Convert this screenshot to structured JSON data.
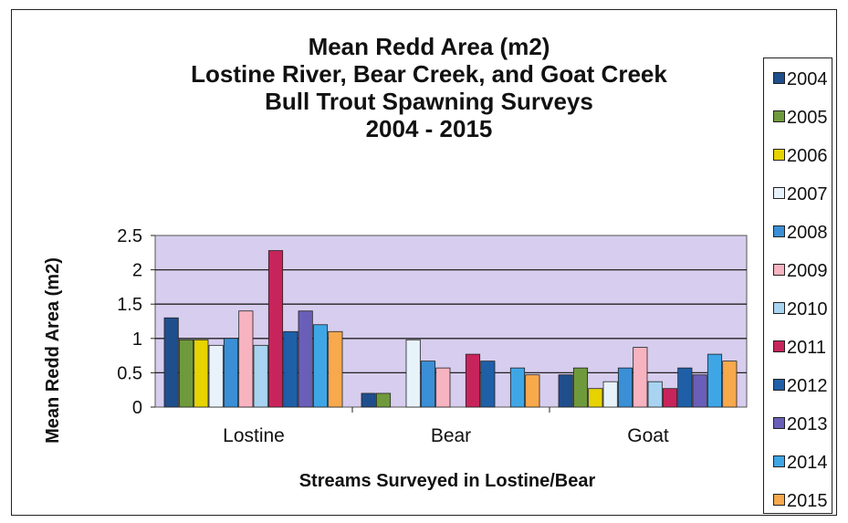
{
  "chart_data": {
    "type": "bar",
    "title_lines": [
      "Mean Redd Area (m2)",
      "Lostine River, Bear Creek, and Goat Creek",
      "Bull Trout Spawning Surveys",
      "2004 - 2015"
    ],
    "xlabel": "Streams Surveyed in Lostine/Bear",
    "ylabel": "Mean Redd Area (m2)",
    "ylim": [
      0,
      2.5
    ],
    "yticks": [
      "0",
      "0.5",
      "1",
      "1.5",
      "2",
      "2.5"
    ],
    "grid": true,
    "legend_position": "right",
    "categories": [
      "Lostine",
      "Bear",
      "Goat"
    ],
    "series": [
      {
        "name": "2004",
        "color": "#1f4e8c",
        "values": [
          1.3,
          0.2,
          0.47
        ]
      },
      {
        "name": "2005",
        "color": "#6f9a3c",
        "values": [
          0.98,
          0.2,
          0.57
        ]
      },
      {
        "name": "2006",
        "color": "#e6d300",
        "values": [
          0.98,
          0,
          0.27
        ]
      },
      {
        "name": "2007",
        "color": "#e8f2fb",
        "values": [
          0.9,
          0.98,
          0.37
        ]
      },
      {
        "name": "2008",
        "color": "#3a8fd6",
        "values": [
          1.0,
          0.67,
          0.57
        ]
      },
      {
        "name": "2009",
        "color": "#f7b3c0",
        "values": [
          1.4,
          0.57,
          0.87
        ]
      },
      {
        "name": "2010",
        "color": "#a8d4f2",
        "values": [
          0.9,
          0,
          0.37
        ]
      },
      {
        "name": "2011",
        "color": "#c8245c",
        "values": [
          2.28,
          0.77,
          0.27
        ]
      },
      {
        "name": "2012",
        "color": "#1f5fa8",
        "values": [
          1.1,
          0.67,
          0.57
        ]
      },
      {
        "name": "2013",
        "color": "#6a5fb8",
        "values": [
          1.4,
          0,
          0.47
        ]
      },
      {
        "name": "2014",
        "color": "#3fa6e6",
        "values": [
          1.2,
          0.57,
          0.77
        ]
      },
      {
        "name": "2015",
        "color": "#f7a94c",
        "values": [
          1.1,
          0.47,
          0.67
        ]
      }
    ]
  }
}
